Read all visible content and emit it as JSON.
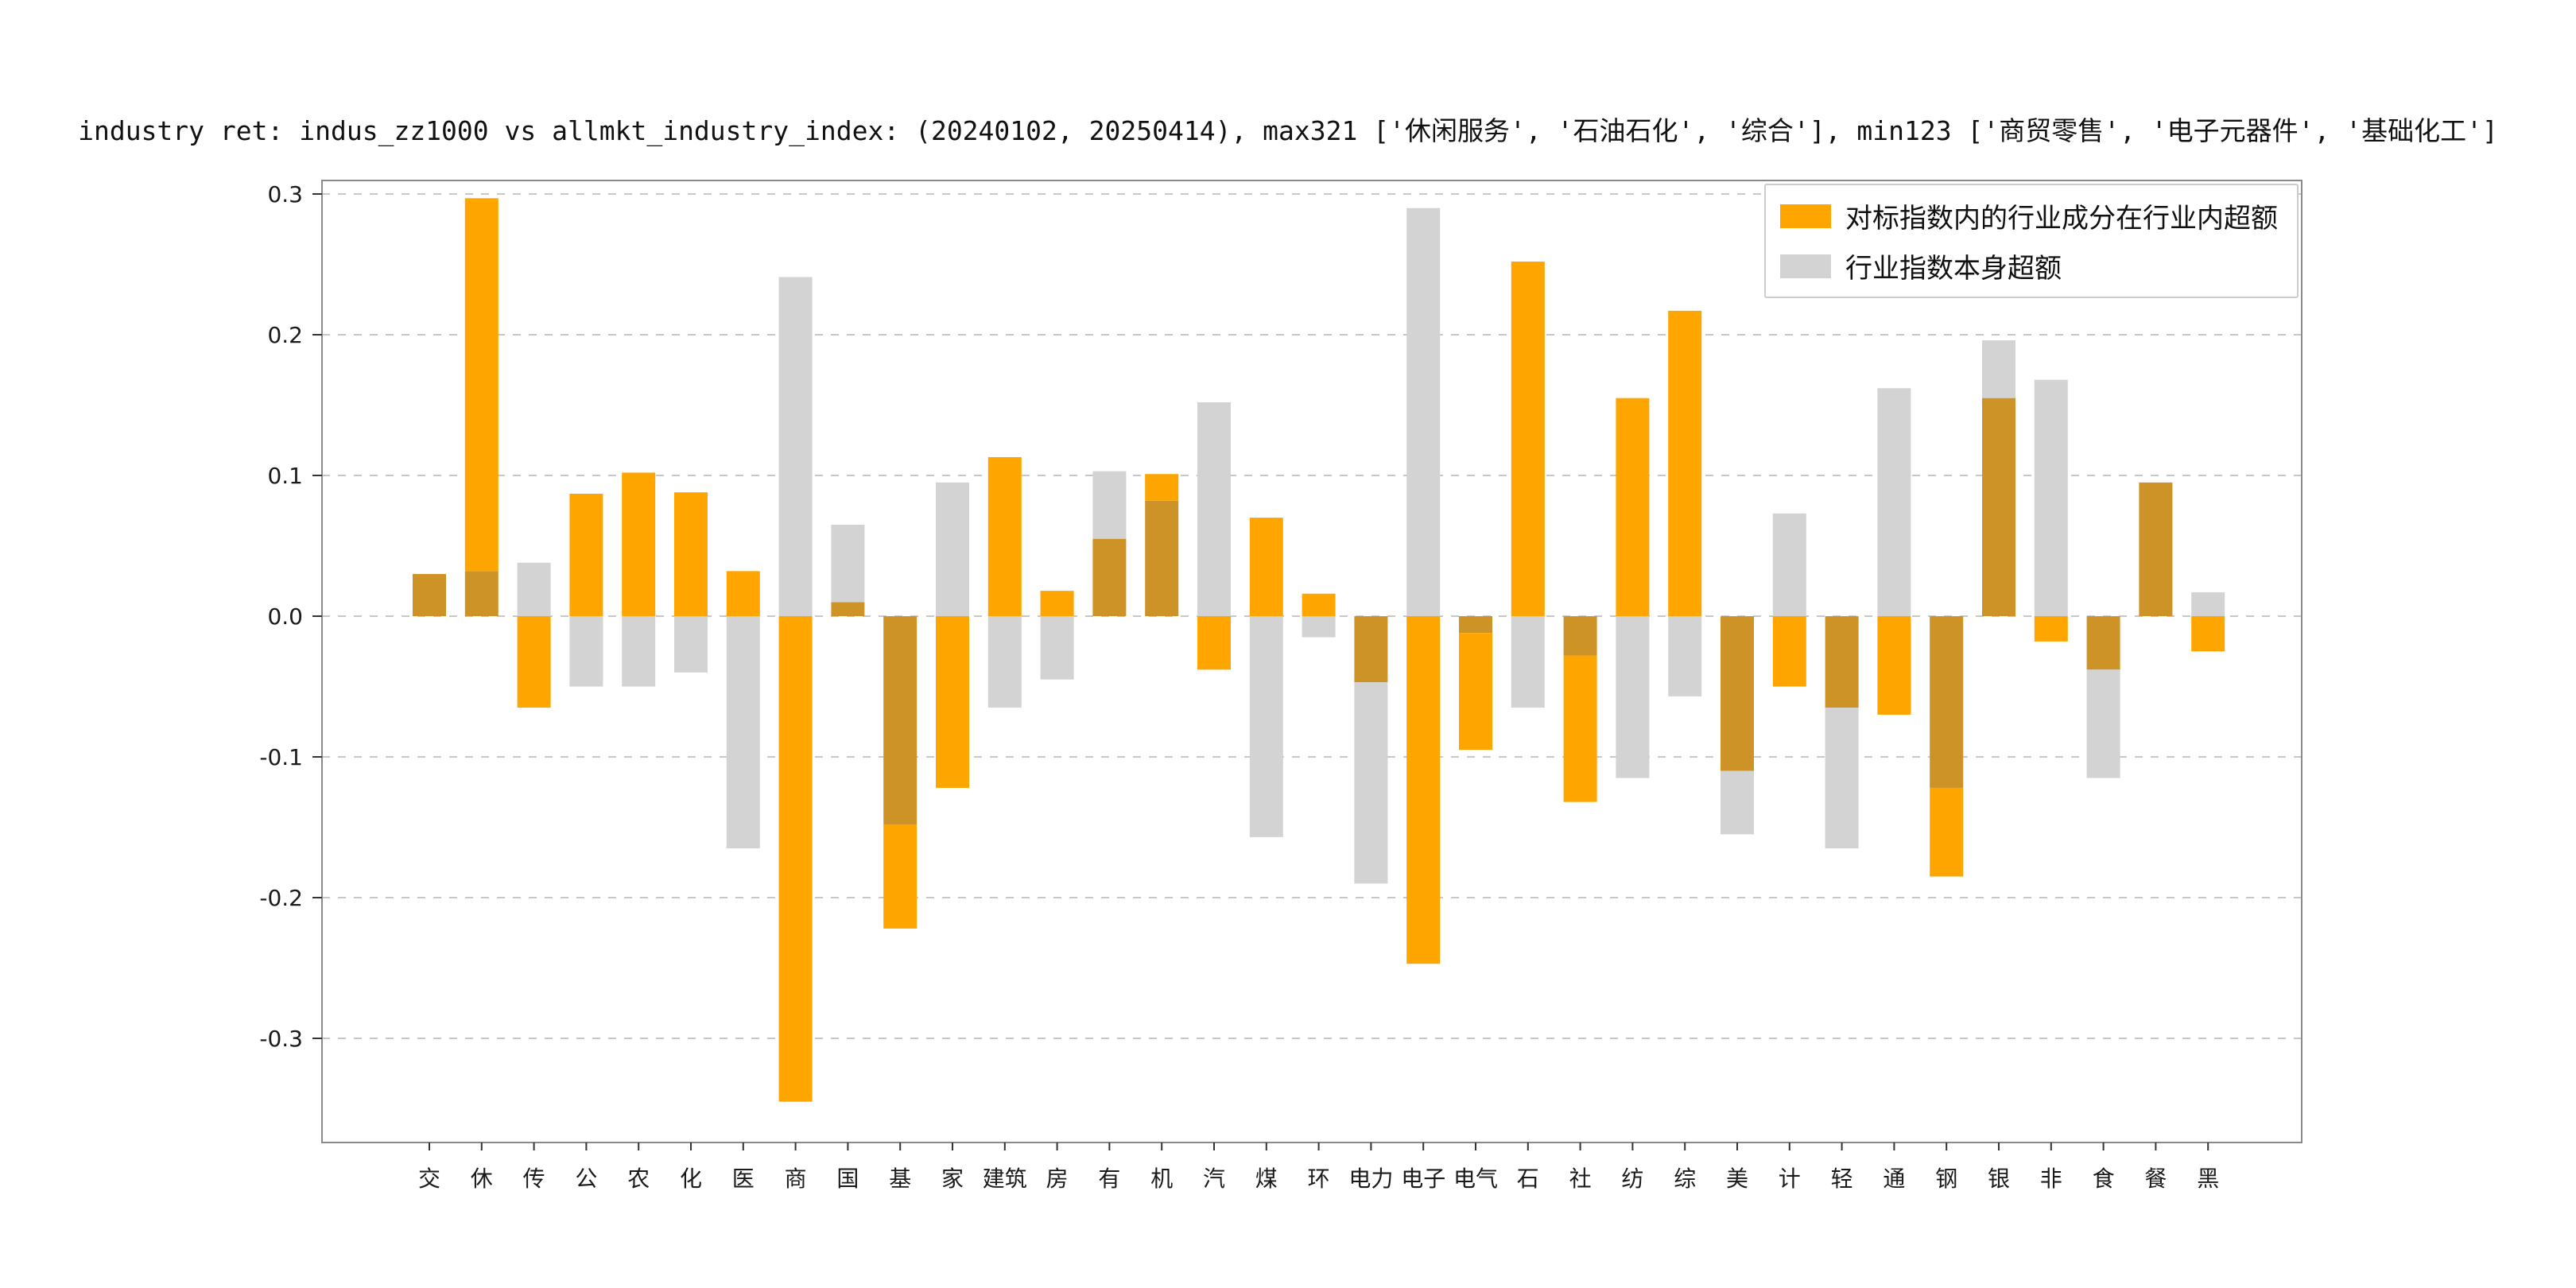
{
  "chart_data": {
    "type": "bar",
    "title": "industry ret: indus_zz1000 vs allmkt_industry_index: (20240102, 20250414), max321 ['休闲服务', '石油石化', '综合'], min123 ['商贸零售', '电子元器件', '基础化工']",
    "categories": [
      "交",
      "休",
      "传",
      "公",
      "农",
      "化",
      "医",
      "商",
      "国",
      "基",
      "家",
      "建筑",
      "房",
      "有",
      "机",
      "汽",
      "煤",
      "环",
      "电力",
      "电子",
      "电气",
      "石",
      "社",
      "纺",
      "综",
      "美",
      "计",
      "轻",
      "通",
      "钢",
      "银",
      "非",
      "食",
      "餐",
      "黑"
    ],
    "series": [
      {
        "name": "对标指数内的行业成分在行业内超额",
        "color": "#ffa500",
        "values": [
          0.03,
          0.297,
          -0.065,
          0.087,
          0.102,
          0.088,
          0.032,
          -0.345,
          0.01,
          -0.222,
          -0.122,
          0.113,
          0.018,
          0.055,
          0.101,
          -0.038,
          0.07,
          0.016,
          -0.047,
          -0.247,
          -0.095,
          0.252,
          -0.132,
          0.155,
          0.217,
          -0.11,
          -0.05,
          -0.065,
          -0.07,
          -0.185,
          0.155,
          -0.018,
          -0.038,
          0.095,
          -0.025
        ]
      },
      {
        "name": "行业指数本身超额",
        "color": "#d3d3d3",
        "values": [
          0.03,
          0.032,
          0.038,
          -0.05,
          -0.05,
          -0.04,
          -0.165,
          0.241,
          0.065,
          -0.148,
          0.095,
          -0.065,
          -0.045,
          0.103,
          0.082,
          0.152,
          -0.157,
          -0.015,
          -0.19,
          0.29,
          -0.012,
          -0.065,
          -0.028,
          -0.115,
          -0.057,
          -0.155,
          0.073,
          -0.165,
          0.162,
          -0.122,
          0.196,
          0.168,
          -0.115,
          0.095,
          0.017
        ]
      }
    ],
    "overlap_color": "#cd9327",
    "y_ticks": [
      "0.3",
      "0.2",
      "0.1",
      "0.0",
      "-0.1",
      "-0.2",
      "-0.3"
    ],
    "ylim": [
      -0.374,
      0.31
    ],
    "grid": "horizontal dashed",
    "legend_position": "upper right",
    "axis_color": "#8a8a8a",
    "grid_color": "#c7c7c7",
    "tick_label_color": "#1a1a1a"
  }
}
